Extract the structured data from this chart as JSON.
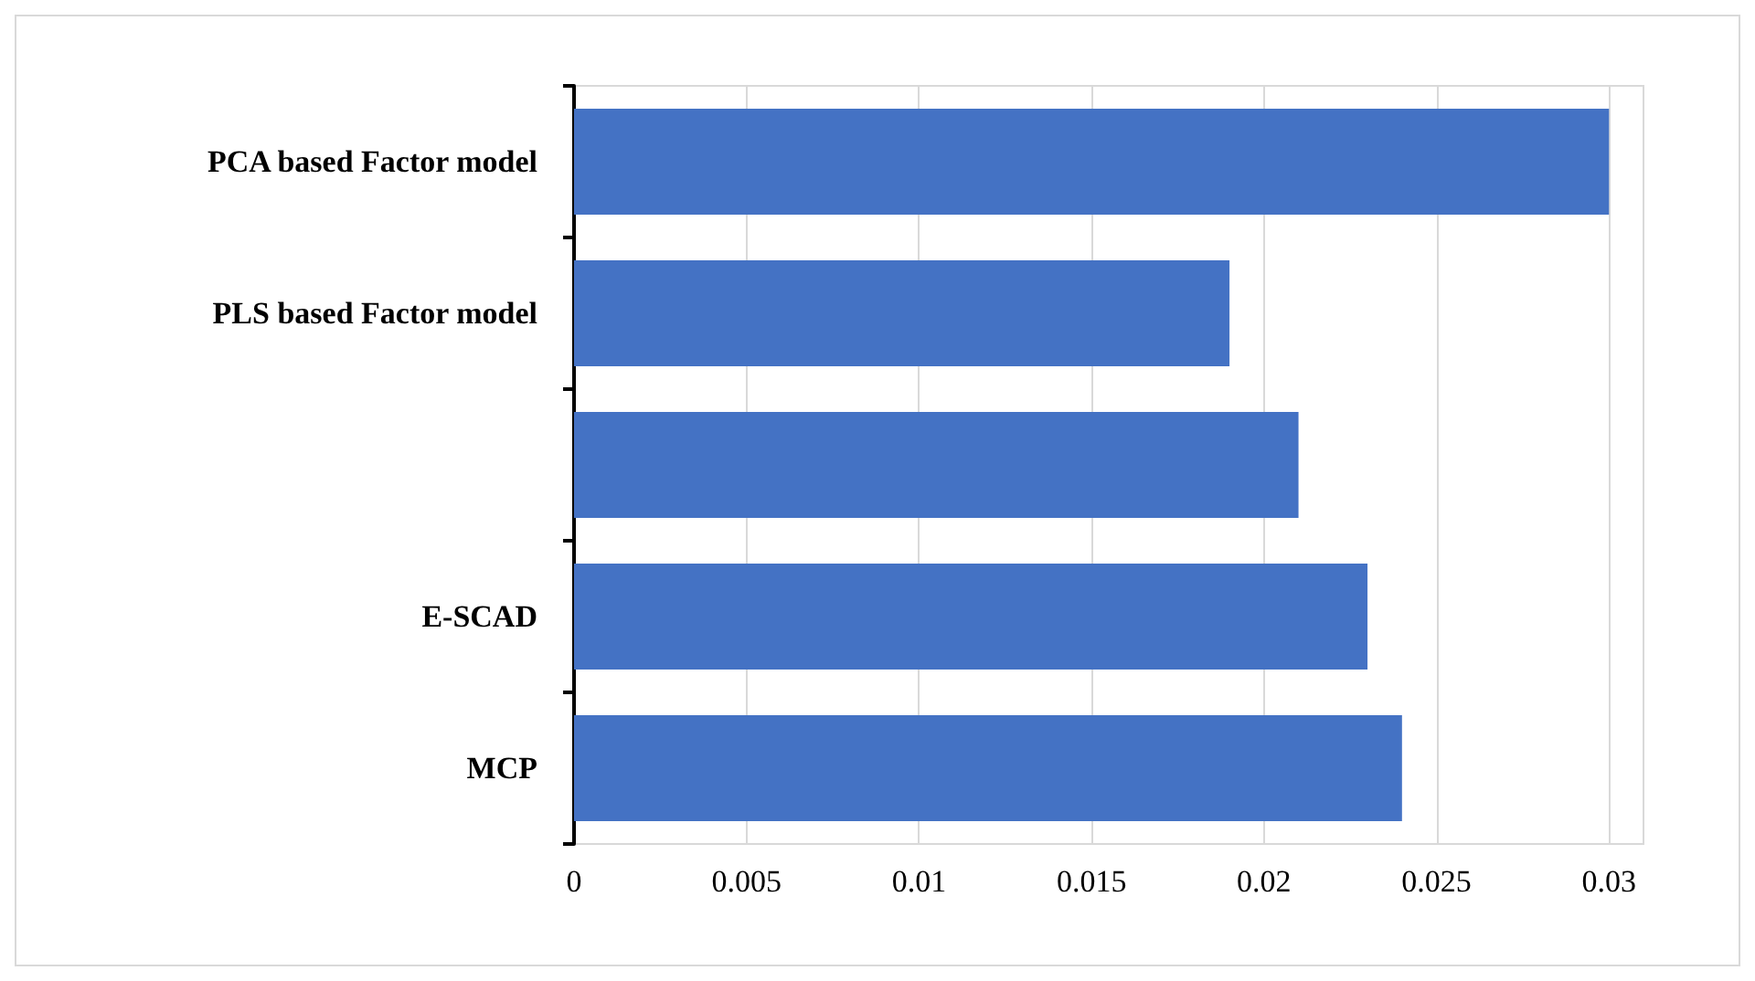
{
  "chart_data": {
    "type": "bar",
    "orientation": "horizontal",
    "categories": [
      "PCA based Factor model",
      "PLS based Factor model",
      null,
      "E-SCAD",
      "MCP"
    ],
    "values": [
      0.03,
      0.019,
      0.021,
      0.023,
      0.024
    ],
    "color": "#4472c4",
    "xlim": [
      0,
      0.031
    ],
    "xticks": [
      0,
      0.005,
      0.01,
      0.015,
      0.02,
      0.025,
      0.03
    ],
    "grid": "x"
  }
}
